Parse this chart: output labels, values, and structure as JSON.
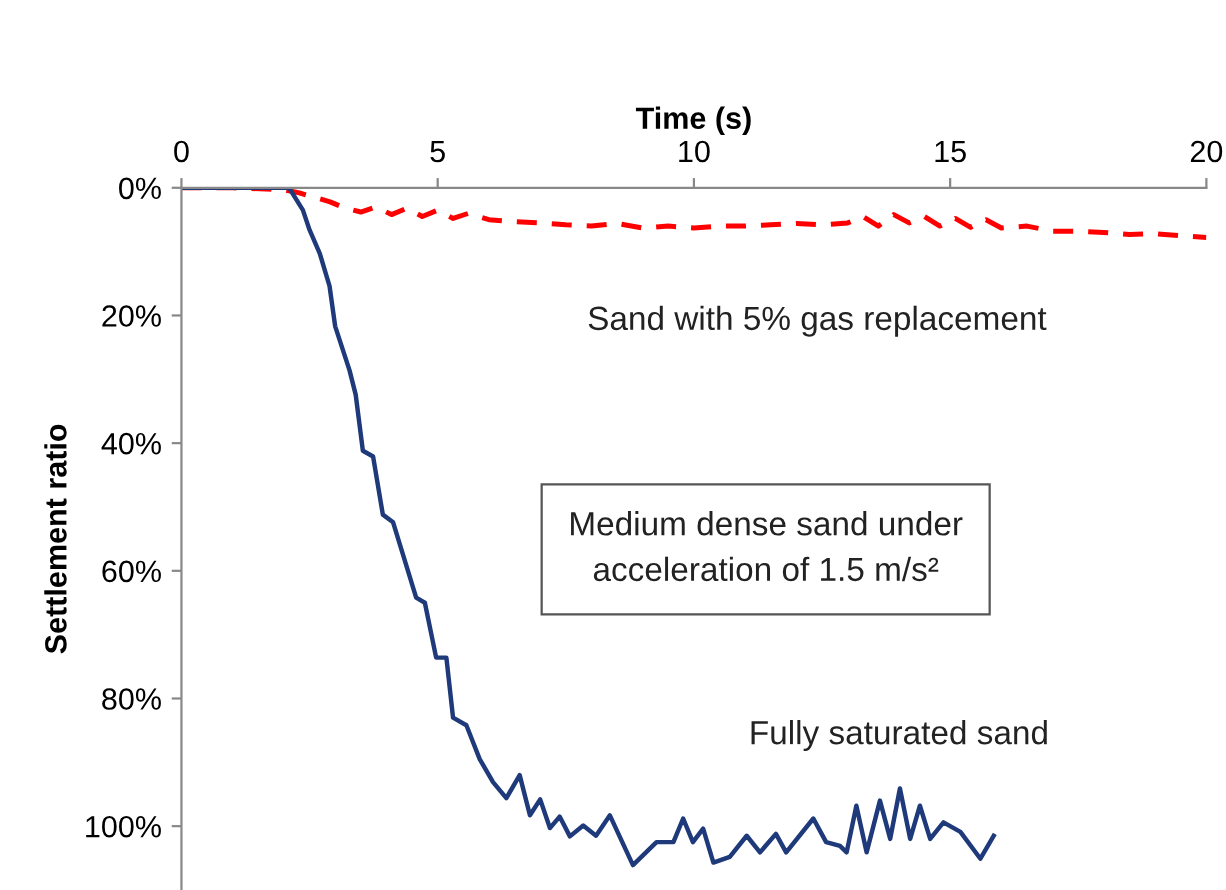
{
  "chart_data": {
    "type": "line",
    "xlabel": "Time (s)",
    "ylabel": "Settlement ratio",
    "xlim": [
      0,
      20
    ],
    "xticks": [
      0,
      5,
      10,
      15,
      20
    ],
    "ylim": [
      110,
      0
    ],
    "yticks": [
      {
        "value": 0,
        "label": "0%"
      },
      {
        "value": 20,
        "label": "20%"
      },
      {
        "value": 40,
        "label": "40%"
      },
      {
        "value": 60,
        "label": "60%"
      },
      {
        "value": 80,
        "label": "80%"
      },
      {
        "value": 100,
        "label": "100%"
      }
    ],
    "grid": false,
    "legend": false,
    "annotations": [
      "Medium dense sand under\nacceleration of 1.5 m/s²"
    ],
    "series": [
      {
        "name": "Sand with 5% gas replacement",
        "color": "#ff0000",
        "line_style": "dashed",
        "x": [
          0,
          1,
          2,
          2.3,
          2.6,
          2.9,
          3.2,
          3.5,
          3.8,
          4.1,
          4.4,
          4.7,
          5.0,
          5.3,
          5.6,
          6.0,
          6.5,
          7.0,
          7.5,
          8.0,
          8.5,
          9.0,
          9.5,
          10.0,
          10.5,
          11.0,
          11.5,
          12.0,
          12.5,
          13.0,
          13.3,
          13.6,
          13.9,
          14.2,
          14.5,
          14.8,
          15.1,
          15.4,
          15.7,
          16.0,
          16.5,
          17.0,
          17.5,
          18.0,
          18.5,
          19.0,
          19.5,
          20.0
        ],
        "values": [
          0,
          0,
          0.3,
          0.8,
          1.5,
          2.2,
          3.2,
          3.8,
          3.0,
          4.2,
          3.2,
          4.5,
          3.5,
          4.8,
          4.0,
          5.0,
          5.3,
          5.5,
          5.8,
          6.0,
          5.6,
          6.3,
          6.0,
          6.3,
          6.0,
          6.0,
          5.8,
          5.6,
          5.8,
          5.5,
          4.5,
          6.0,
          4.2,
          5.5,
          4.5,
          6.0,
          4.8,
          6.2,
          5.0,
          6.3,
          6.0,
          6.8,
          6.8,
          7.0,
          7.3,
          7.2,
          7.5,
          7.8
        ]
      },
      {
        "name": "Fully saturated sand",
        "color": "#1f3a7a",
        "line_style": "solid",
        "x": [
          0,
          1,
          2.1,
          2.37,
          2.5,
          2.7,
          2.89,
          3.0,
          3.28,
          3.4,
          3.54,
          3.74,
          3.93,
          4.13,
          4.32,
          4.58,
          4.75,
          4.97,
          5.17,
          5.3,
          5.56,
          5.82,
          6.08,
          6.34,
          6.6,
          6.8,
          7.0,
          7.19,
          7.38,
          7.58,
          7.84,
          8.09,
          8.36,
          8.81,
          9.27,
          9.6,
          9.79,
          9.98,
          10.18,
          10.38,
          10.7,
          11.03,
          11.29,
          11.6,
          11.8,
          12.33,
          12.58,
          12.85,
          12.98,
          13.17,
          13.37,
          13.63,
          13.83,
          14.02,
          14.22,
          14.41,
          14.61,
          14.87,
          15.2,
          15.59,
          15.85
        ],
        "values": [
          0,
          0,
          0,
          3.5,
          6.6,
          10.3,
          15.4,
          21.7,
          28.6,
          32.4,
          41.2,
          42.1,
          51.2,
          52.4,
          57.4,
          64.2,
          65,
          73.6,
          73.6,
          83,
          84.2,
          89.5,
          93.1,
          95.6,
          92,
          98.3,
          95.8,
          100.3,
          98.5,
          101.6,
          99.9,
          101.5,
          98.3,
          106.1,
          102.5,
          102.5,
          98.8,
          102.5,
          100.4,
          105.7,
          104.8,
          101.5,
          104.1,
          101.2,
          104.1,
          98.8,
          102.5,
          103.1,
          104.1,
          96.8,
          104.1,
          96,
          102,
          94.1,
          102,
          96.8,
          102,
          99.4,
          100.9,
          105.1,
          101.5
        ]
      }
    ]
  }
}
